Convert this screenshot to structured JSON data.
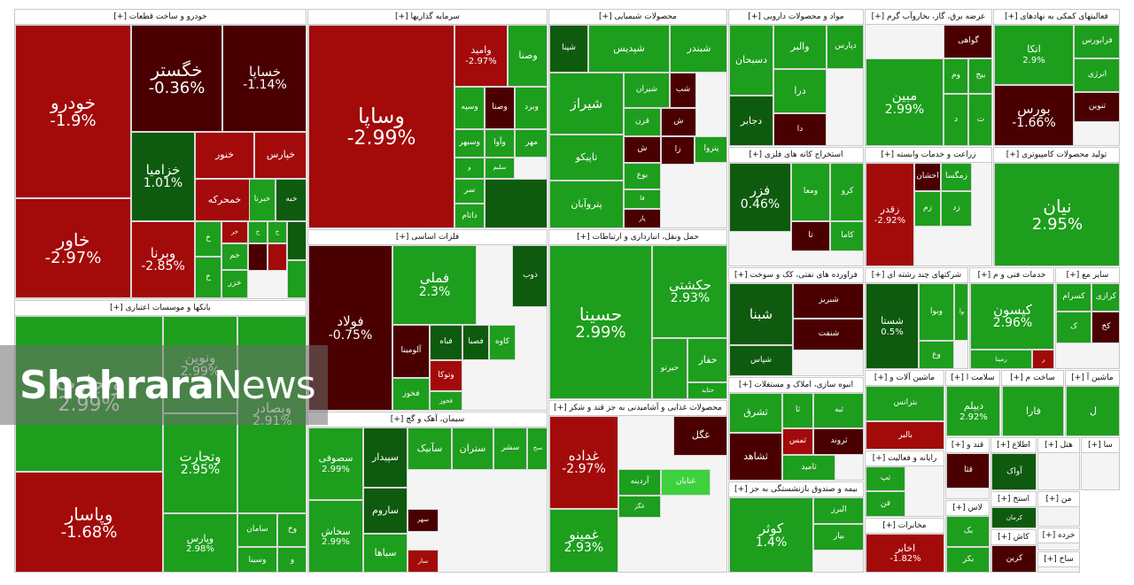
{
  "watermark": {
    "bold": "Shahrara",
    "light": "News"
  },
  "colors": {
    "dred": "#4a0000",
    "red": "#a30a0a",
    "lred": "#cc1a1a",
    "dgreen": "#0e5a0e",
    "green": "#1d9e1d",
    "lgreen": "#3ed13e"
  },
  "chart_data": {
    "type": "treemap",
    "sectors": [
      {
        "name": "خودرو و ساخت قطعات [+]",
        "tiles": [
          {
            "s": "خودرو",
            "c": "-1.9%",
            "k": "red"
          },
          {
            "s": "خگستر",
            "c": "-0.36%",
            "k": "dred"
          },
          {
            "s": "خساپا",
            "c": "-1.14%",
            "k": "dred"
          },
          {
            "s": "خاور",
            "c": "-2.97%",
            "k": "red"
          },
          {
            "s": "خزامیا",
            "c": "1.01%",
            "k": "dgreen"
          },
          {
            "s": "خنور",
            "c": "",
            "k": "red"
          },
          {
            "s": "خپارس",
            "c": "",
            "k": "red"
          },
          {
            "s": "خمحرکه",
            "c": "",
            "k": "red"
          },
          {
            "s": "خبرنا",
            "c": "",
            "k": "green"
          },
          {
            "s": "خبه",
            "c": "",
            "k": "dgreen"
          },
          {
            "s": "وبرنا",
            "c": "-2.85%",
            "k": "red"
          },
          {
            "s": "خ",
            "c": "",
            "k": "green"
          },
          {
            "s": "خر",
            "c": "",
            "k": "red"
          },
          {
            "s": "خ",
            "c": "",
            "k": "green"
          },
          {
            "s": "خ",
            "c": "",
            "k": "green"
          },
          {
            "s": "خم",
            "c": "",
            "k": "green"
          },
          {
            "s": "خ",
            "c": "",
            "k": "green"
          },
          {
            "s": "خزر",
            "c": "",
            "k": "green"
          },
          {
            "s": "",
            "c": "",
            "k": "dred"
          },
          {
            "s": "",
            "c": "",
            "k": "red"
          },
          {
            "s": "",
            "c": "",
            "k": "dgreen"
          },
          {
            "s": "",
            "c": "",
            "k": "green"
          }
        ]
      },
      {
        "name": "بانکها و موسسات اعتباری [+]",
        "tiles": [
          {
            "s": "وتجارت",
            "c": "2.99%",
            "k": "green"
          },
          {
            "s": "ونوین",
            "c": "2.99%",
            "k": "green"
          },
          {
            "s": "وتجارت",
            "c": "2.95%",
            "k": "green"
          },
          {
            "s": "وبصادر",
            "c": "2.91%",
            "k": "green"
          },
          {
            "s": "وپاسار",
            "c": "-1.68%",
            "k": "red"
          },
          {
            "s": "وپارس",
            "c": "2.98%",
            "k": "green"
          },
          {
            "s": "سامان",
            "c": "",
            "k": "green"
          },
          {
            "s": "وخ",
            "c": "",
            "k": "green"
          },
          {
            "s": "وسینا",
            "c": "",
            "k": "green"
          },
          {
            "s": "و",
            "c": "",
            "k": "green"
          }
        ]
      },
      {
        "name": "سرمایه گذاریها [+]",
        "tiles": [
          {
            "s": "وساپا",
            "c": "-2.99%",
            "k": "red"
          },
          {
            "s": "وامید",
            "c": "-2.97%",
            "k": "red"
          },
          {
            "s": "وصنا",
            "c": "",
            "k": "green"
          },
          {
            "s": "وسپه",
            "c": "",
            "k": "green"
          },
          {
            "s": "وصنا",
            "c": "",
            "k": "dred"
          },
          {
            "s": "وبرد",
            "c": "",
            "k": "green"
          },
          {
            "s": "وسبهر",
            "c": "",
            "k": "green"
          },
          {
            "s": "وآوا",
            "c": "",
            "k": "green"
          },
          {
            "s": "مهر",
            "c": "",
            "k": "green"
          },
          {
            "s": "و",
            "c": "",
            "k": "green"
          },
          {
            "s": "سلیم",
            "c": "",
            "k": "green"
          },
          {
            "s": "سر",
            "c": "",
            "k": "green"
          },
          {
            "s": "داتام",
            "c": "",
            "k": "green"
          },
          {
            "s": "",
            "c": "",
            "k": "dgreen"
          }
        ]
      },
      {
        "name": "محصولات شیمیایی [+]",
        "tiles": [
          {
            "s": "شپنا",
            "c": "",
            "k": "dgreen"
          },
          {
            "s": "شپدیس",
            "c": "",
            "k": "green"
          },
          {
            "s": "شبندر",
            "c": "",
            "k": "green"
          },
          {
            "s": "شیراز",
            "c": "",
            "k": "green"
          },
          {
            "s": "شیران",
            "c": "",
            "k": "green"
          },
          {
            "s": "شب",
            "c": "",
            "k": "dred"
          },
          {
            "s": "قرن",
            "c": "",
            "k": "green"
          },
          {
            "s": "ش",
            "c": "",
            "k": "dred"
          },
          {
            "s": "تاپیکو",
            "c": "",
            "k": "green"
          },
          {
            "s": "زا",
            "c": "",
            "k": "dred"
          },
          {
            "s": "ش",
            "c": "",
            "k": "dred"
          },
          {
            "s": "پتروآبان",
            "c": "",
            "k": "green"
          },
          {
            "s": "بوع",
            "c": "",
            "k": "green"
          },
          {
            "s": "فا",
            "c": "",
            "k": "green"
          },
          {
            "s": "پار",
            "c": "",
            "k": "dred"
          },
          {
            "s": "پتروا",
            "c": "",
            "k": "green"
          },
          {
            "s": "پترول",
            "c": "",
            "k": "green"
          }
        ]
      },
      {
        "name": "مواد و محصولات دارویی [+]",
        "tiles": [
          {
            "s": "دپارس",
            "c": "",
            "k": "green"
          },
          {
            "s": "والبر",
            "c": "",
            "k": "green"
          },
          {
            "s": "دسبحان",
            "c": "",
            "k": "green"
          },
          {
            "s": "درا",
            "c": "",
            "k": "green"
          },
          {
            "s": "دا",
            "c": "",
            "k": "dred"
          },
          {
            "s": "دجابر",
            "c": "",
            "k": "dgreen"
          }
        ]
      },
      {
        "name": "عرضه برق، گاز، بخاروآب گرم [+]",
        "tiles": [
          {
            "s": "مبین",
            "c": "2.99%",
            "k": "green"
          },
          {
            "s": "گواهی",
            "c": "",
            "k": "dred"
          },
          {
            "s": "وم",
            "c": "",
            "k": "green"
          },
          {
            "s": "بیج",
            "c": "",
            "k": "green"
          },
          {
            "s": "د",
            "c": "",
            "k": "green"
          },
          {
            "s": "ت",
            "c": "",
            "k": "green"
          }
        ]
      },
      {
        "name": "فعالیتهای کمکی به نهادهای [+]",
        "tiles": [
          {
            "s": "اتکا",
            "c": "2.9%",
            "k": "green"
          },
          {
            "s": "فرابورس",
            "c": "",
            "k": "green"
          },
          {
            "s": "انرژی",
            "c": "",
            "k": "green"
          },
          {
            "s": "بورس",
            "c": "-1.66%",
            "k": "dred"
          },
          {
            "s": "تنوین",
            "c": "",
            "k": "dred"
          }
        ]
      },
      {
        "name": "فلزات اساسی [+]",
        "tiles": [
          {
            "s": "فولاد",
            "c": "-0.75%",
            "k": "dred"
          },
          {
            "s": "فملی",
            "c": "2.3%",
            "k": "green"
          },
          {
            "s": "فخوز",
            "c": "",
            "k": "green"
          },
          {
            "s": "ذوب",
            "c": "",
            "k": "dgreen"
          },
          {
            "s": "آلومینا",
            "c": "",
            "k": "dred"
          },
          {
            "s": "فباه",
            "c": "",
            "k": "dgreen"
          },
          {
            "s": "فصبا",
            "c": "",
            "k": "dgreen"
          },
          {
            "s": "وتوکا",
            "c": "",
            "k": "red"
          },
          {
            "s": "فخوز",
            "c": "",
            "k": "green"
          },
          {
            "s": "کاوه",
            "c": "",
            "k": "green"
          }
        ]
      },
      {
        "name": "حمل ونقل، انبارداری و ارتباطات [+]",
        "tiles": [
          {
            "s": "حسینا",
            "c": "2.99%",
            "k": "green"
          },
          {
            "s": "حکشتی",
            "c": "2.93%",
            "k": "green"
          },
          {
            "s": "حیرتو",
            "c": "",
            "k": "green"
          },
          {
            "s": "حفار",
            "c": "",
            "k": "green"
          },
          {
            "s": "حتاید",
            "c": "",
            "k": "green"
          }
        ]
      },
      {
        "name": "سیمان، آهک و گچ [+]",
        "tiles": [
          {
            "s": "سصوفی",
            "c": "2.99%",
            "k": "green"
          },
          {
            "s": "سپیدار",
            "c": "",
            "k": "dgreen"
          },
          {
            "s": "سآبیک",
            "c": "",
            "k": "green"
          },
          {
            "s": "ستران",
            "c": "",
            "k": "green"
          },
          {
            "s": "سشر",
            "c": "",
            "k": "green"
          },
          {
            "s": "سخ",
            "c": "",
            "k": "green"
          },
          {
            "s": "ساروم",
            "c": "",
            "k": "dgreen"
          },
          {
            "s": "سیاها",
            "c": "",
            "k": "green"
          },
          {
            "s": "سهر",
            "c": "",
            "k": "dred"
          },
          {
            "s": "سار",
            "c": "",
            "k": "red"
          },
          {
            "s": "سخاش",
            "c": "2.99%",
            "k": "green"
          }
        ]
      },
      {
        "name": "محصولات غذایی و آشامیدنی به جز قند و شکر [+]",
        "tiles": [
          {
            "s": "غداده",
            "c": "-2.97%",
            "k": "red"
          },
          {
            "s": "غگل",
            "c": "",
            "k": "dred"
          },
          {
            "s": "غنابان",
            "c": "",
            "k": "lgreen"
          },
          {
            "s": "آردینه",
            "c": "",
            "k": "green"
          },
          {
            "s": "غگز",
            "c": "",
            "k": "green"
          },
          {
            "s": "غمینو",
            "c": "2.93%",
            "k": "green"
          }
        ]
      },
      {
        "name": "استخراج کانه های فلزی [+]",
        "tiles": [
          {
            "s": "فزر",
            "c": "0.46%",
            "k": "dgreen"
          },
          {
            "s": "ومعا",
            "c": "",
            "k": "green"
          },
          {
            "s": "کرو",
            "c": "",
            "k": "green"
          },
          {
            "s": "تا",
            "c": "",
            "k": "dred"
          },
          {
            "s": "کاما",
            "c": "",
            "k": "green"
          }
        ]
      },
      {
        "name": "زراعت و خدمات وابسته [+]",
        "tiles": [
          {
            "s": "زقدر",
            "c": "-2.92%",
            "k": "red"
          },
          {
            "s": "اخشان",
            "c": "",
            "k": "dred"
          },
          {
            "s": "زمگسا",
            "c": "",
            "k": "green"
          },
          {
            "s": "زم",
            "c": "",
            "k": "green"
          },
          {
            "s": "زد",
            "c": "",
            "k": "green"
          }
        ]
      },
      {
        "name": "تولید محصولات کامپیوتری [+]",
        "tiles": [
          {
            "s": "نیان",
            "c": "2.95%",
            "k": "green"
          }
        ]
      },
      {
        "name": "فراورده های نفتی، کک و سوخت [+]",
        "tiles": [
          {
            "s": "شبنا",
            "c": "",
            "k": "dgreen"
          },
          {
            "s": "شبریز",
            "c": "",
            "k": "dred"
          },
          {
            "s": "شنفت",
            "c": "",
            "k": "dred"
          },
          {
            "s": "شپاس",
            "c": "",
            "k": "dgreen"
          }
        ]
      },
      {
        "name": "شرکتهای چند رشته ای [+]",
        "tiles": [
          {
            "s": "شستا",
            "c": "0.5%",
            "k": "dgreen"
          },
          {
            "s": "وبوا",
            "c": "",
            "k": "green"
          },
          {
            "s": "وا",
            "c": "",
            "k": "green"
          },
          {
            "s": "وغ",
            "c": "",
            "k": "green"
          }
        ]
      },
      {
        "name": "خدمات فنی و م [+]",
        "tiles": [
          {
            "s": "کیسون",
            "c": "2.96%",
            "k": "green"
          },
          {
            "s": "رمپنا",
            "c": "",
            "k": "green"
          },
          {
            "s": "ر",
            "c": "",
            "k": "red"
          }
        ]
      },
      {
        "name": "سایر مع [+]",
        "tiles": [
          {
            "s": "کرازی",
            "c": "",
            "k": "green"
          },
          {
            "s": "کسرام",
            "c": "",
            "k": "green"
          },
          {
            "s": "کخ",
            "c": "",
            "k": "dred"
          },
          {
            "s": "ک",
            "c": "",
            "k": "green"
          }
        ]
      },
      {
        "name": "انبوه سازی، املاک و مستغلات [+]",
        "tiles": [
          {
            "s": "ثشرق",
            "c": "",
            "k": "green"
          },
          {
            "s": "ثبه",
            "c": "",
            "k": "green"
          },
          {
            "s": "ثا",
            "c": "",
            "k": "green"
          },
          {
            "s": "ثمس",
            "c": "",
            "k": "red"
          },
          {
            "s": "ثروند",
            "c": "",
            "k": "dred"
          },
          {
            "s": "ثشاهد",
            "c": "",
            "k": "dred"
          },
          {
            "s": "ثامید",
            "c": "",
            "k": "green"
          }
        ]
      },
      {
        "name": "ماشین آلات و [+]",
        "tiles": [
          {
            "s": "بترانس",
            "c": "",
            "k": "green"
          },
          {
            "s": "بالبر",
            "c": "",
            "k": "red"
          }
        ]
      },
      {
        "name": "سلامت ا [+]",
        "tiles": [
          {
            "s": "دیپلم",
            "c": "2.92%",
            "k": "green"
          }
        ]
      },
      {
        "name": "ساخت م [+]",
        "tiles": [
          {
            "s": "فارا",
            "c": "",
            "k": "green"
          }
        ]
      },
      {
        "name": "ماشین آ [+]",
        "tiles": [
          {
            "s": "ل",
            "c": "",
            "k": "green"
          }
        ]
      },
      {
        "name": "رایانه و فعالیت [+]",
        "tiles": [
          {
            "s": "تپ",
            "c": "",
            "k": "green"
          },
          {
            "s": "فن",
            "c": "",
            "k": "green"
          }
        ]
      },
      {
        "name": "قند و [+]",
        "tiles": [
          {
            "s": "قثا",
            "c": "",
            "k": "dred"
          }
        ]
      },
      {
        "name": "اطلاع [+]",
        "tiles": [
          {
            "s": "آواک",
            "c": "",
            "k": "dgreen"
          }
        ]
      },
      {
        "name": "هتل [+]",
        "tiles": []
      },
      {
        "name": "سا [+]",
        "tiles": []
      },
      {
        "name": "بیمه و صندوق بازنشستگی به جز [+]",
        "tiles": [
          {
            "s": "کوثر",
            "c": "1.4%",
            "k": "green"
          },
          {
            "s": "البرز",
            "c": "",
            "k": "green"
          },
          {
            "s": "بیار",
            "c": "",
            "k": "green"
          }
        ]
      },
      {
        "name": "مخابرات [+]",
        "tiles": [
          {
            "s": "اخابر",
            "c": "-1.82%",
            "k": "red"
          }
        ]
      },
      {
        "name": "استخ [+]",
        "tiles": [
          {
            "s": "کرمان",
            "c": "",
            "k": "dgreen"
          }
        ]
      },
      {
        "name": "لاس [+]",
        "tiles": [
          {
            "s": "بک",
            "c": "",
            "k": "green"
          },
          {
            "s": "بکر",
            "c": "",
            "k": "green"
          }
        ]
      },
      {
        "name": "کاش [+]",
        "tiles": [
          {
            "s": "کرین",
            "c": "",
            "k": "dred"
          }
        ]
      },
      {
        "name": "من [+]",
        "tiles": []
      },
      {
        "name": "خرده [+]",
        "tiles": []
      },
      {
        "name": "ساخ [+]",
        "tiles": []
      }
    ]
  }
}
